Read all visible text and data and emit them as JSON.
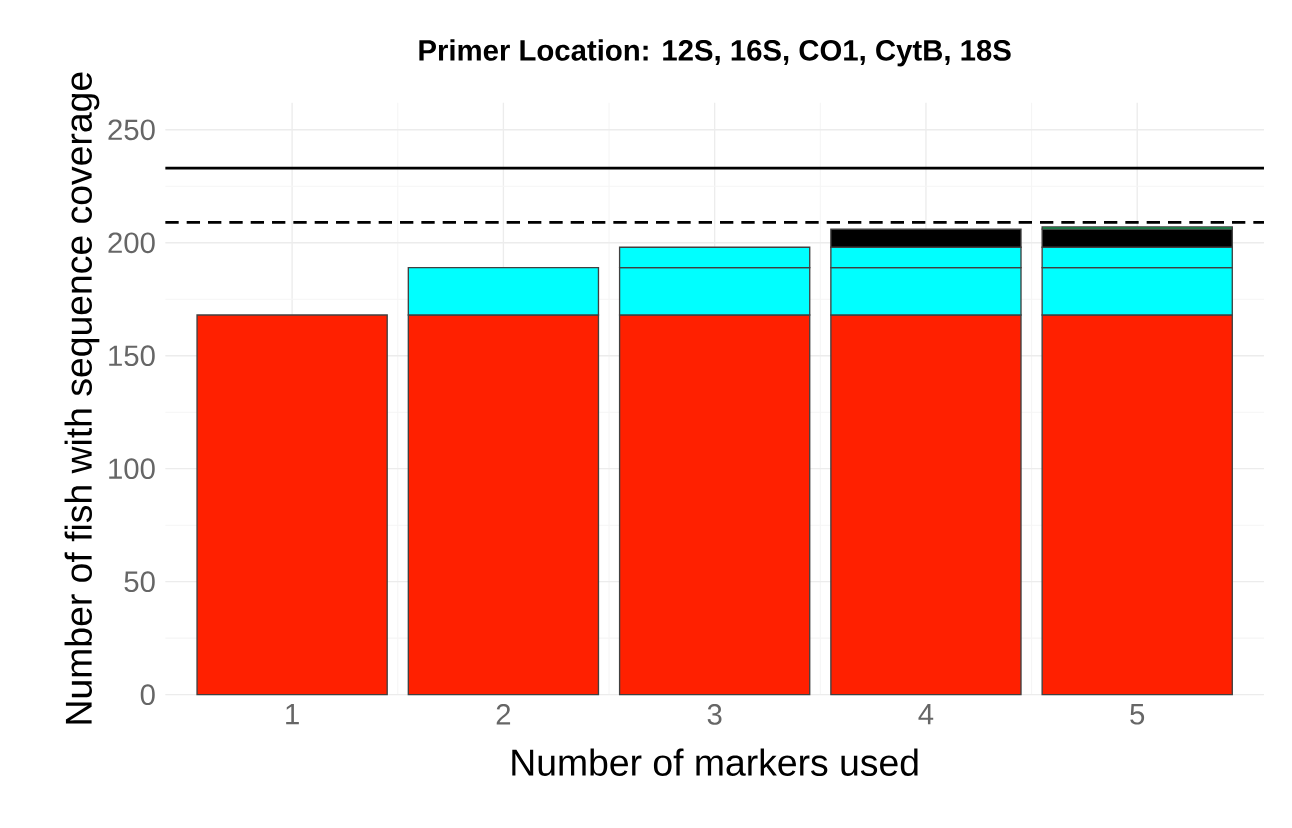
{
  "chart_data": {
    "type": "bar",
    "stacked": true,
    "title": "Primer Location: 12S, 16S, CO1, CytB, 18S",
    "xlabel": "Number of markers used",
    "ylabel": "Number of fish with sequence coverage",
    "categories": [
      "1",
      "2",
      "3",
      "4",
      "5"
    ],
    "series": [
      {
        "color": "#ff2000",
        "values": [
          168,
          168,
          168,
          168,
          168
        ]
      },
      {
        "color": "#00ffff",
        "values": [
          null,
          21,
          21,
          21,
          21
        ]
      },
      {
        "color": "#00ffff",
        "values": [
          null,
          null,
          9,
          9,
          9
        ]
      },
      {
        "color": "#000000",
        "values": [
          null,
          null,
          null,
          8,
          8
        ]
      },
      {
        "color": "#00b050",
        "values": [
          null,
          null,
          null,
          null,
          1
        ]
      }
    ],
    "ylim": [
      0,
      262
    ],
    "yticks": [
      0,
      50,
      100,
      150,
      200,
      250
    ],
    "grid": true,
    "ref_lines": [
      {
        "axis": "y",
        "value": 233,
        "line_style": "solid"
      },
      {
        "axis": "y",
        "value": 209,
        "line_style": "dashed"
      }
    ]
  }
}
